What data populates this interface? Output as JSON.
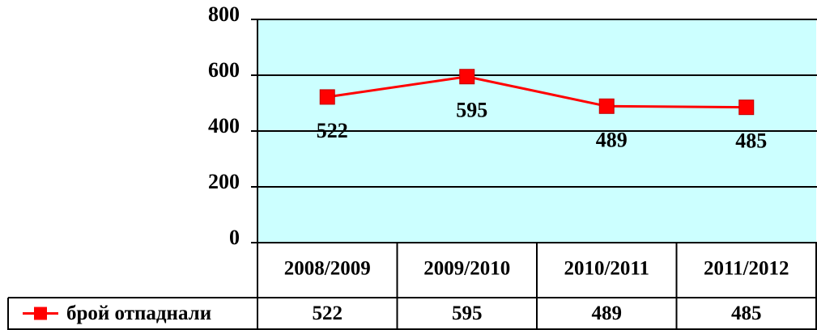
{
  "chart_data": {
    "type": "line",
    "categories": [
      "2008/2009",
      "2009/2010",
      "2010/2011",
      "2011/2012"
    ],
    "series": [
      {
        "name": "брой отпаднали",
        "color": "#ff0000",
        "values": [
          522,
          595,
          489,
          485
        ]
      }
    ],
    "ylim": [
      0,
      800
    ],
    "yticks": [
      0,
      200,
      400,
      600,
      800
    ],
    "grid": true,
    "background": "#ccffff"
  }
}
